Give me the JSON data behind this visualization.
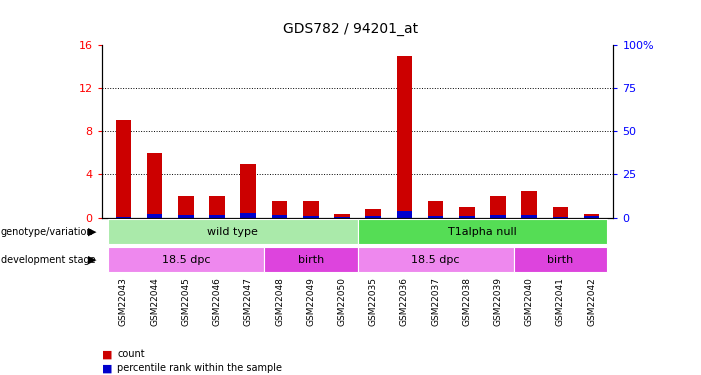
{
  "title": "GDS782 / 94201_at",
  "samples": [
    "GSM22043",
    "GSM22044",
    "GSM22045",
    "GSM22046",
    "GSM22047",
    "GSM22048",
    "GSM22049",
    "GSM22050",
    "GSM22035",
    "GSM22036",
    "GSM22037",
    "GSM22038",
    "GSM22039",
    "GSM22040",
    "GSM22041",
    "GSM22042"
  ],
  "count": [
    9.0,
    6.0,
    2.0,
    2.0,
    5.0,
    1.5,
    1.5,
    0.3,
    0.8,
    15.0,
    1.5,
    1.0,
    2.0,
    2.5,
    1.0,
    0.3
  ],
  "percentile": [
    0.5,
    1.8,
    1.5,
    1.5,
    2.5,
    1.2,
    0.9,
    0.2,
    0.7,
    4.0,
    0.8,
    0.7,
    1.5,
    1.5,
    0.5,
    0.8
  ],
  "ylim_left": [
    0,
    16
  ],
  "ylim_right": [
    0,
    100
  ],
  "yticks_left": [
    0,
    4,
    8,
    12,
    16
  ],
  "yticks_right": [
    0,
    25,
    50,
    75,
    100
  ],
  "yticklabels_right": [
    "0",
    "25",
    "50",
    "75",
    "100%"
  ],
  "count_color": "#cc0000",
  "percentile_color": "#0000cc",
  "grid_color": "black",
  "background_color": "#ffffff",
  "genotype_groups": [
    {
      "label": "wild type",
      "start": 0,
      "end": 8,
      "color": "#aaeaaa"
    },
    {
      "label": "T1alpha null",
      "start": 8,
      "end": 16,
      "color": "#55dd55"
    }
  ],
  "stage_groups": [
    {
      "label": "18.5 dpc",
      "start": 0,
      "end": 5,
      "color": "#ee88ee"
    },
    {
      "label": "birth",
      "start": 5,
      "end": 8,
      "color": "#dd44dd"
    },
    {
      "label": "18.5 dpc",
      "start": 8,
      "end": 13,
      "color": "#ee88ee"
    },
    {
      "label": "birth",
      "start": 13,
      "end": 16,
      "color": "#dd44dd"
    }
  ],
  "legend_items": [
    {
      "label": "count",
      "color": "#cc0000"
    },
    {
      "label": "percentile rank within the sample",
      "color": "#0000cc"
    }
  ]
}
